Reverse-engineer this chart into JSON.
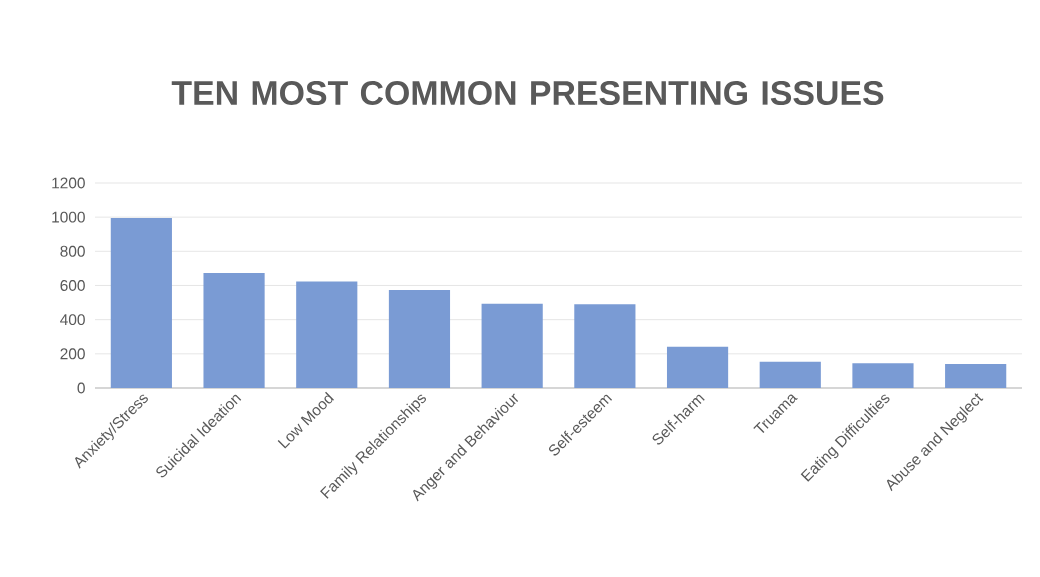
{
  "chart_data": {
    "type": "bar",
    "title": "TEN MOST COMMON PRESENTING ISSUES",
    "categories": [
      "Anxiety/Stress",
      "Suicidal Ideation",
      "Low Mood",
      "Family Relationships",
      "Anger and Behaviour",
      "Self-esteem",
      "Self-harm",
      "Truama",
      "Eating Difficulties",
      "Abuse and Neglect"
    ],
    "values": [
      995,
      673,
      623,
      573,
      493,
      490,
      241,
      153,
      145,
      141
    ],
    "color": "#7a9bd4",
    "ylim": [
      0,
      1200
    ],
    "yticks": [
      0,
      200,
      400,
      600,
      800,
      1000,
      1200
    ],
    "grid": "y"
  }
}
